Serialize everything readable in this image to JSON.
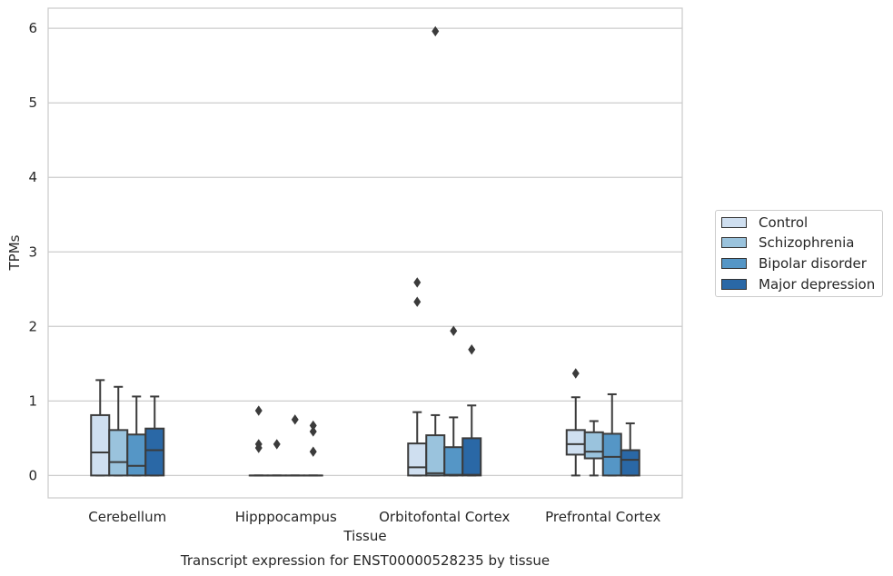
{
  "chart_data": {
    "type": "box",
    "title": "Transcript expression for ENST00000528235 by tissue",
    "xlabel": "Tissue",
    "ylabel": "TPMs",
    "ylim": [
      -0.3,
      6.27
    ],
    "yticks": [
      0,
      1,
      2,
      3,
      4,
      5,
      6
    ],
    "categories": [
      "Cerebellum",
      "Hipppocampus",
      "Orbitofontal Cortex",
      "Prefrontal Cortex"
    ],
    "grid": true,
    "legend_position": "right",
    "series": [
      {
        "name": "Control",
        "color": "#cfdff0",
        "boxes": [
          {
            "q1": 0,
            "median": 0.31,
            "q3": 0.81,
            "whisker_low": 0,
            "whisker_high": 1.28,
            "outliers": []
          },
          {
            "q1": 0,
            "median": 0,
            "q3": 0,
            "whisker_low": 0,
            "whisker_high": 0,
            "outliers": [
              0.87,
              0.42,
              0.37
            ]
          },
          {
            "q1": 0,
            "median": 0.11,
            "q3": 0.43,
            "whisker_low": 0,
            "whisker_high": 0.85,
            "outliers": [
              2.59,
              2.33
            ]
          },
          {
            "q1": 0.28,
            "median": 0.42,
            "q3": 0.61,
            "whisker_low": 0,
            "whisker_high": 1.05,
            "outliers": [
              1.37
            ]
          }
        ]
      },
      {
        "name": "Schizophrenia",
        "color": "#9ac3dd",
        "boxes": [
          {
            "q1": 0,
            "median": 0.18,
            "q3": 0.61,
            "whisker_low": 0,
            "whisker_high": 1.19,
            "outliers": []
          },
          {
            "q1": 0,
            "median": 0,
            "q3": 0,
            "whisker_low": 0,
            "whisker_high": 0,
            "outliers": [
              0.42
            ]
          },
          {
            "q1": 0,
            "median": 0.03,
            "q3": 0.54,
            "whisker_low": 0,
            "whisker_high": 0.81,
            "outliers": [
              5.96
            ]
          },
          {
            "q1": 0.23,
            "median": 0.32,
            "q3": 0.58,
            "whisker_low": 0,
            "whisker_high": 0.73,
            "outliers": []
          }
        ]
      },
      {
        "name": "Bipolar disorder",
        "color": "#5596c6",
        "boxes": [
          {
            "q1": 0,
            "median": 0.13,
            "q3": 0.55,
            "whisker_low": 0,
            "whisker_high": 1.06,
            "outliers": []
          },
          {
            "q1": 0,
            "median": 0,
            "q3": 0,
            "whisker_low": 0,
            "whisker_high": 0,
            "outliers": [
              0.75
            ]
          },
          {
            "q1": 0,
            "median": 0.01,
            "q3": 0.38,
            "whisker_low": 0,
            "whisker_high": 0.78,
            "outliers": [
              1.94
            ]
          },
          {
            "q1": 0,
            "median": 0.25,
            "q3": 0.56,
            "whisker_low": 0,
            "whisker_high": 1.09,
            "outliers": []
          }
        ]
      },
      {
        "name": "Major depression",
        "color": "#2a68a6",
        "boxes": [
          {
            "q1": 0,
            "median": 0.34,
            "q3": 0.63,
            "whisker_low": 0,
            "whisker_high": 1.06,
            "outliers": []
          },
          {
            "q1": 0,
            "median": 0,
            "q3": 0,
            "whisker_low": 0,
            "whisker_high": 0,
            "outliers": [
              0.67,
              0.59,
              0.32
            ]
          },
          {
            "q1": 0,
            "median": 0.01,
            "q3": 0.5,
            "whisker_low": 0,
            "whisker_high": 0.94,
            "outliers": [
              1.69
            ]
          },
          {
            "q1": 0,
            "median": 0.21,
            "q3": 0.34,
            "whisker_low": 0,
            "whisker_high": 0.7,
            "outliers": []
          }
        ]
      }
    ]
  }
}
